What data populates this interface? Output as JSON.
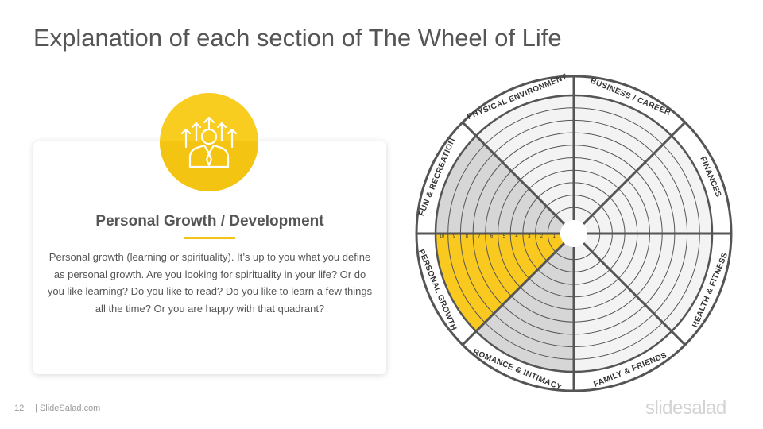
{
  "page": {
    "title": "Explanation of each section of The Wheel of Life"
  },
  "card": {
    "heading": "Personal Growth / Development",
    "body": "Personal growth (learning or spirituality). It’s up to you what you define as personal growth. Are you looking for spirituality in your life? Or do you like learning? Do you like to read? Do you like to learn a few things all the time? Or you are happy with that quadrant?",
    "icon": "personal-growth-icon"
  },
  "wheel": {
    "sections": [
      {
        "label": "BUSINESS / CAREER",
        "fill": "light"
      },
      {
        "label": "FINANCES",
        "fill": "light"
      },
      {
        "label": "HEALTH & FITNESS",
        "fill": "light"
      },
      {
        "label": "FAMILY & FRIENDS",
        "fill": "light"
      },
      {
        "label": "ROMANCE & INTIMACY",
        "fill": "dark"
      },
      {
        "label": "PERSONAL GROWTH",
        "fill": "highlight"
      },
      {
        "label": "FUN & RECREATION",
        "fill": "dark"
      },
      {
        "label": "PHYSICAL ENVIRONMENT",
        "fill": "light"
      }
    ],
    "scale": [
      "10",
      "9",
      "8",
      "7",
      "6",
      "5",
      "4",
      "3",
      "2",
      "1"
    ],
    "colors": {
      "light": "#f3f3f3",
      "dark": "#d6d6d6",
      "highlight": "#f9c920",
      "stroke": "#555555"
    }
  },
  "footer": {
    "page_number": "12",
    "site": "| SlideSalad.com",
    "logo": "slidesalad"
  }
}
